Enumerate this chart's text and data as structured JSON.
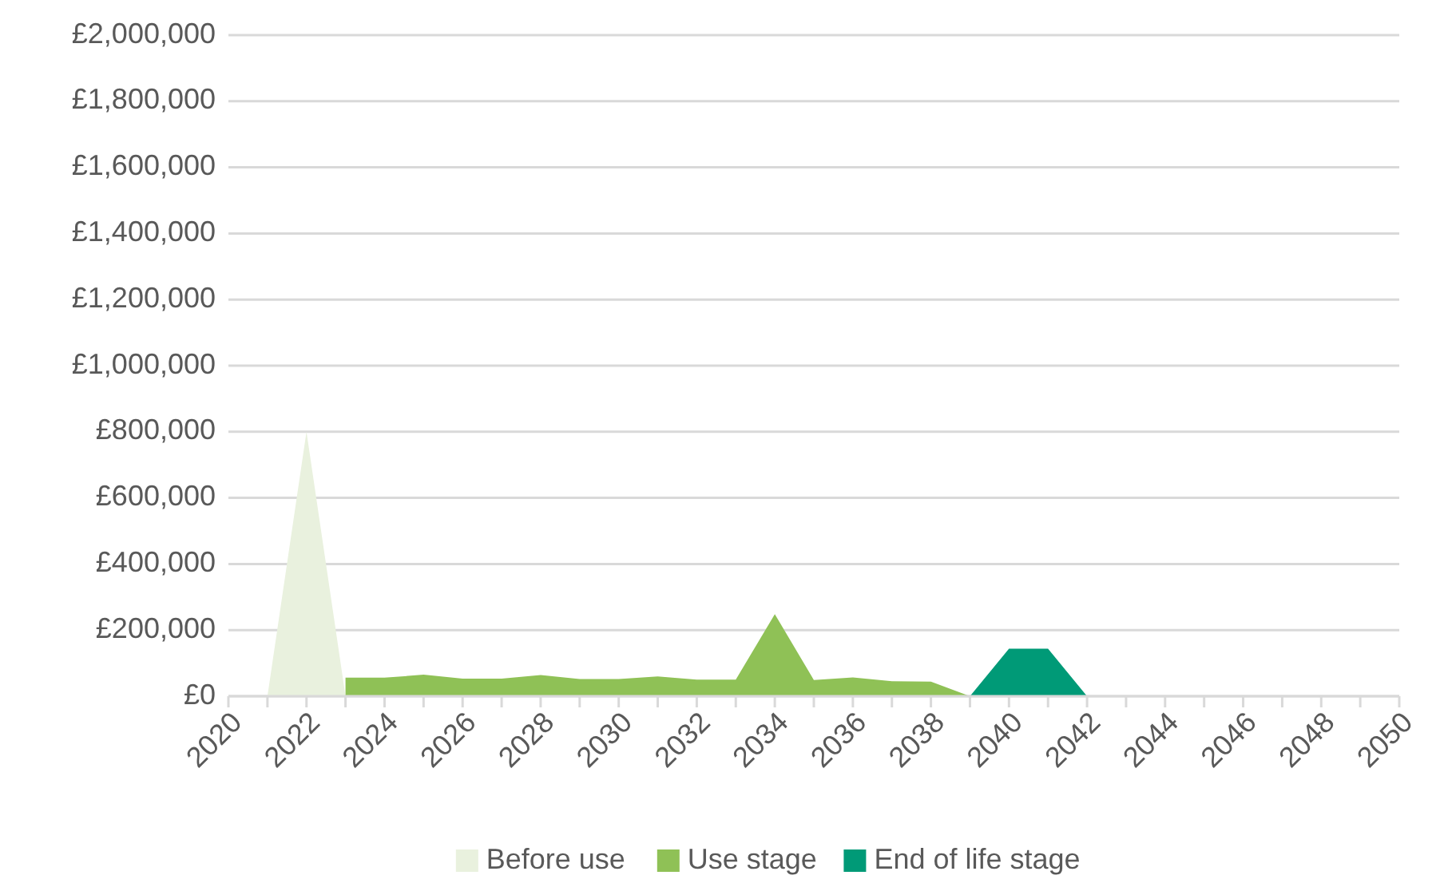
{
  "chart_data": {
    "type": "area",
    "x": [
      2020,
      2021,
      2022,
      2023,
      2024,
      2025,
      2026,
      2027,
      2028,
      2029,
      2030,
      2031,
      2032,
      2033,
      2034,
      2035,
      2036,
      2037,
      2038,
      2039,
      2040,
      2041,
      2042,
      2043,
      2044,
      2045,
      2046,
      2047,
      2048,
      2049,
      2050
    ],
    "series": [
      {
        "name": "Before use",
        "color": "#e9f1de",
        "values": [
          0,
          0,
          800000,
          0,
          0,
          0,
          0,
          0,
          0,
          0,
          0,
          0,
          0,
          0,
          0,
          0,
          0,
          0,
          0,
          0,
          0,
          0,
          0,
          0,
          0,
          0,
          0,
          0,
          0,
          0,
          0
        ]
      },
      {
        "name": "Use stage",
        "color": "#8fc156",
        "values": [
          null,
          null,
          null,
          56000,
          56000,
          65000,
          53000,
          53000,
          64000,
          52000,
          52000,
          60000,
          50000,
          50000,
          248000,
          49000,
          57000,
          45000,
          44000,
          0,
          0,
          0,
          0,
          0,
          0,
          0,
          0,
          0,
          0,
          0,
          0
        ]
      },
      {
        "name": "End of life stage",
        "color": "#009a77",
        "values": [
          null,
          null,
          null,
          null,
          null,
          null,
          null,
          null,
          null,
          null,
          null,
          null,
          null,
          null,
          null,
          null,
          null,
          null,
          null,
          0,
          144000,
          144000,
          0,
          0,
          0,
          0,
          0,
          0,
          0,
          0,
          0
        ]
      }
    ],
    "xlim": [
      2020,
      2050
    ],
    "xticks": [
      2020,
      {
        "value": 2021,
        "label": null
      },
      2022,
      {
        "value": 2023,
        "label": null
      },
      2024,
      {
        "value": 2025,
        "label": null
      },
      2026,
      {
        "value": 2027,
        "label": null
      },
      2028,
      {
        "value": 2029,
        "label": null
      },
      2030,
      {
        "value": 2031,
        "label": null
      },
      2032,
      {
        "value": 2033,
        "label": null
      },
      2034,
      {
        "value": 2035,
        "label": null
      },
      2036,
      {
        "value": 2037,
        "label": null
      },
      2038,
      {
        "value": 2039,
        "label": null
      },
      2040,
      {
        "value": 2041,
        "label": null
      },
      2042,
      {
        "value": 2043,
        "label": null
      },
      2044,
      {
        "value": 2045,
        "label": null
      },
      2046,
      {
        "value": 2047,
        "label": null
      },
      2048,
      {
        "value": 2049,
        "label": null
      },
      2050
    ],
    "ylim": [
      0,
      2000000
    ],
    "yticks": [
      {
        "value": 0,
        "label": "£0"
      },
      {
        "value": 200000,
        "label": "£200,000"
      },
      {
        "value": 400000,
        "label": "£400,000"
      },
      {
        "value": 600000,
        "label": "£600,000"
      },
      {
        "value": 800000,
        "label": "£800,000"
      },
      {
        "value": 1000000,
        "label": "£1,000,000"
      },
      {
        "value": 1200000,
        "label": "£1,200,000"
      },
      {
        "value": 1400000,
        "label": "£1,400,000"
      },
      {
        "value": 1600000,
        "label": "£1,600,000"
      },
      {
        "value": 1800000,
        "label": "£1,800,000"
      },
      {
        "value": 2000000,
        "label": "£2,000,000"
      }
    ],
    "grid": "y",
    "legend": "bottom"
  }
}
